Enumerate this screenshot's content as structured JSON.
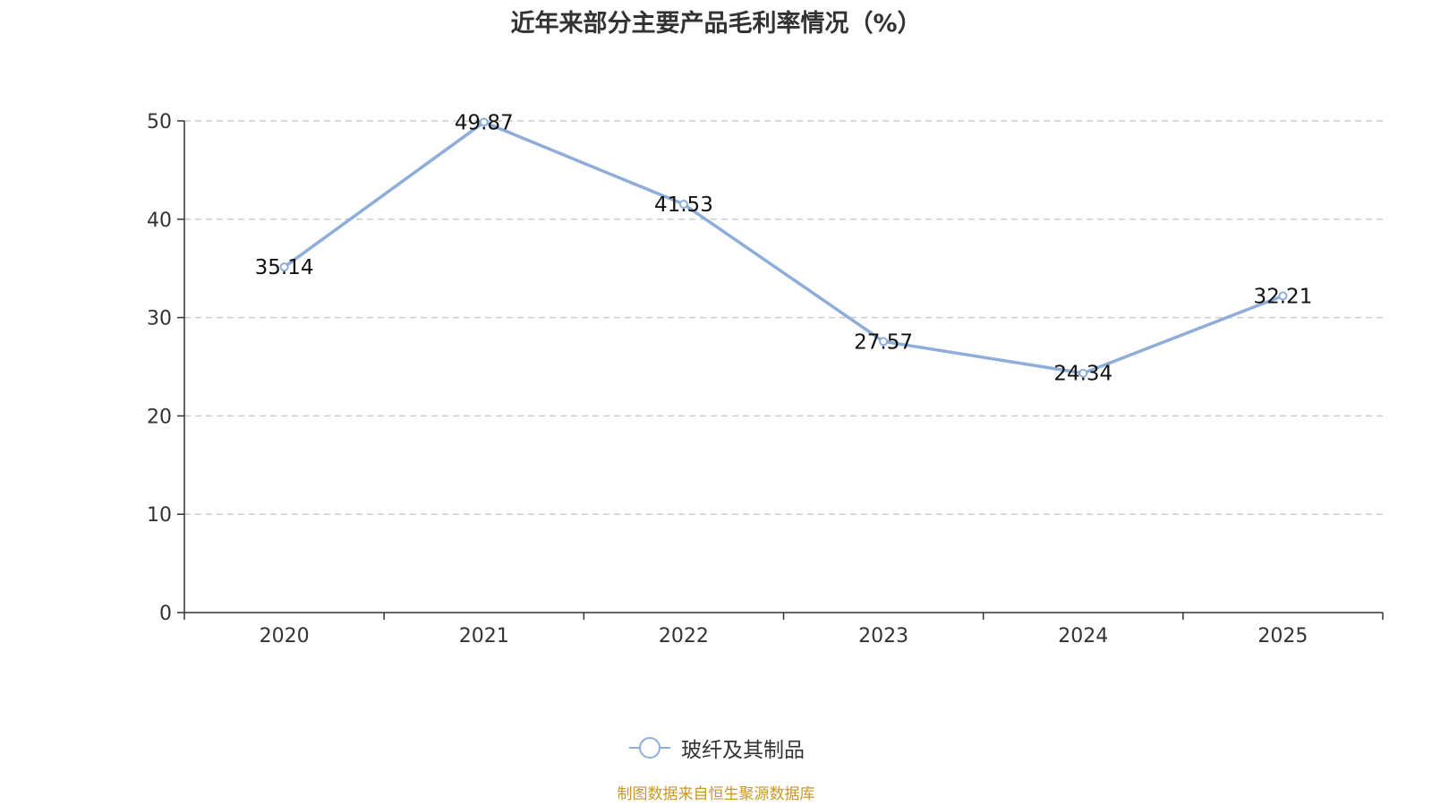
{
  "title": "近年来部分主要产品毛利率情况（%）",
  "source": "制图数据来自恒生聚源数据库",
  "colors": {
    "series": "#8eadd8",
    "axis": "#333333",
    "grid": "#cccccc",
    "source": "#c8962a"
  },
  "chart_data": {
    "type": "line",
    "title": "近年来部分主要产品毛利率情况（%）",
    "categories": [
      "2020",
      "2021",
      "2022",
      "2023",
      "2024",
      "2025"
    ],
    "series": [
      {
        "name": "玻纤及其制品",
        "values": [
          35.14,
          49.87,
          41.53,
          27.57,
          24.34,
          32.21
        ],
        "labels": [
          "35.14",
          "49.87",
          "41.53",
          "27.57",
          "24.34",
          "32.21"
        ]
      }
    ],
    "ylim": [
      0,
      50
    ],
    "yticks": [
      0,
      10,
      20,
      30,
      40,
      50
    ],
    "grid": "dashed horizontal",
    "legend": "bottom-center"
  }
}
